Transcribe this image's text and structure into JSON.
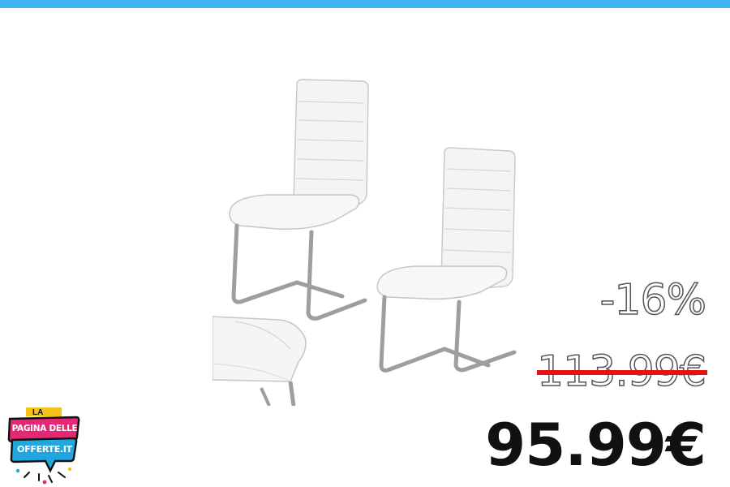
{
  "brand": {
    "accent_color": "#3db5f5",
    "logo_icon": "pagina-delle-offerte-logo",
    "logo_line_top": "LA",
    "logo_line_1": "PAGINA DELLE",
    "logo_line_2": "OFFERTE.IT"
  },
  "product": {
    "image_icon": "white-cantilever-chairs-pair"
  },
  "pricing": {
    "discount": "-16%",
    "old_price": "113.99€",
    "new_price": "95.99€",
    "strike_color": "#e81111"
  }
}
